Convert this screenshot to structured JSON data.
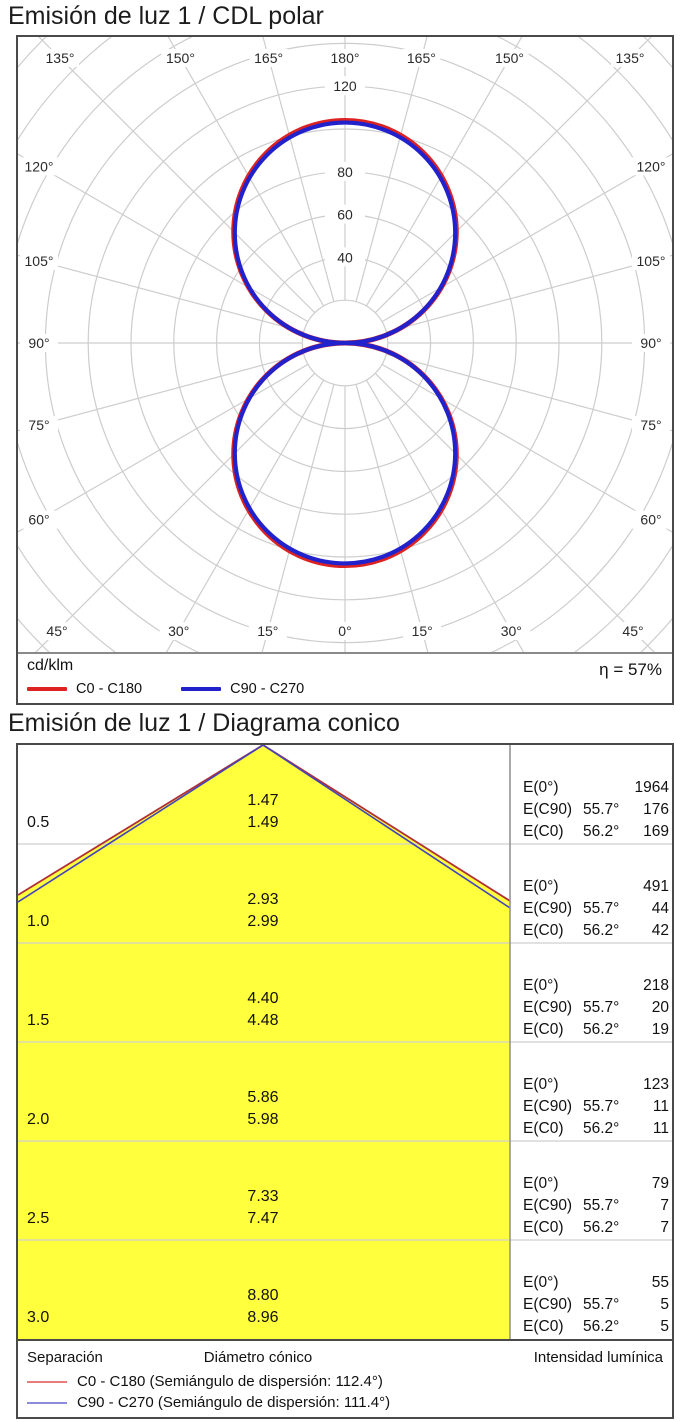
{
  "chart_data": [
    {
      "type": "line",
      "subtype": "polar-intensity-distribution",
      "title": "Emisión de luz 1 / CDL polar",
      "unit": "cd/klm",
      "efficiency": "η = 57%",
      "angle_ticks_deg": [
        0,
        15,
        30,
        45,
        60,
        75,
        90,
        105,
        120,
        135,
        150,
        165,
        180
      ],
      "radial_ticks": [
        40,
        60,
        80,
        120
      ],
      "radial_grid_step": 20,
      "radial_max_visible": 120,
      "gamma_deg": [
        0,
        15,
        30,
        45,
        60,
        75,
        90
      ],
      "series": [
        {
          "name": "C0 - C180",
          "color": "#dd2222",
          "max_cd_klm": 104,
          "values_cd_klm": [
            104,
            100,
            90,
            74,
            52,
            27,
            0
          ],
          "shape": "two tangent circles (cosine-like distribution), symmetric up/down"
        },
        {
          "name": "C90 - C270",
          "color": "#2222cc",
          "max_cd_klm": 103,
          "values_cd_klm": [
            103,
            99,
            89,
            73,
            52,
            27,
            0
          ],
          "shape": "two tangent circles (cosine-like distribution), symmetric up/down"
        }
      ],
      "legend_position": "bottom",
      "grid": true
    },
    {
      "type": "table",
      "subtype": "cone-diagram",
      "title": "Emisión de luz 1 / Diagrama conico",
      "columns": [
        "Separación",
        "Diámetro cónico",
        "Intensidad lumínica"
      ],
      "e_row_labels": [
        "E(0°)",
        "E(C90)",
        "E(C0)"
      ],
      "ec90_angle": "55.7°",
      "ec0_angle": "56.2°",
      "fill_color": "#ffff3d",
      "rows": [
        {
          "separation": "0.5",
          "diameter_c90": "1.47",
          "diameter_c0": "1.49",
          "E0": "1964",
          "EC90": "176",
          "EC0": "169"
        },
        {
          "separation": "1.0",
          "diameter_c90": "2.93",
          "diameter_c0": "2.99",
          "E0": "491",
          "EC90": "44",
          "EC0": "42"
        },
        {
          "separation": "1.5",
          "diameter_c90": "4.40",
          "diameter_c0": "4.48",
          "E0": "218",
          "EC90": "20",
          "EC0": "19"
        },
        {
          "separation": "2.0",
          "diameter_c90": "5.86",
          "diameter_c0": "5.98",
          "E0": "123",
          "EC90": "11",
          "EC0": "11"
        },
        {
          "separation": "2.5",
          "diameter_c90": "7.33",
          "diameter_c0": "7.47",
          "E0": "79",
          "EC90": "7",
          "EC0": "7"
        },
        {
          "separation": "3.0",
          "diameter_c90": "8.80",
          "diameter_c0": "8.96",
          "E0": "55",
          "EC90": "5",
          "EC0": "5"
        }
      ],
      "legend": [
        {
          "label": "C0 - C180 (Semiángulo de dispersión: 112.4°)",
          "color": "#e87c7c"
        },
        {
          "label": "C90 - C270 (Semiángulo de dispersión: 111.4°)",
          "color": "#8c8cdc"
        }
      ]
    }
  ]
}
